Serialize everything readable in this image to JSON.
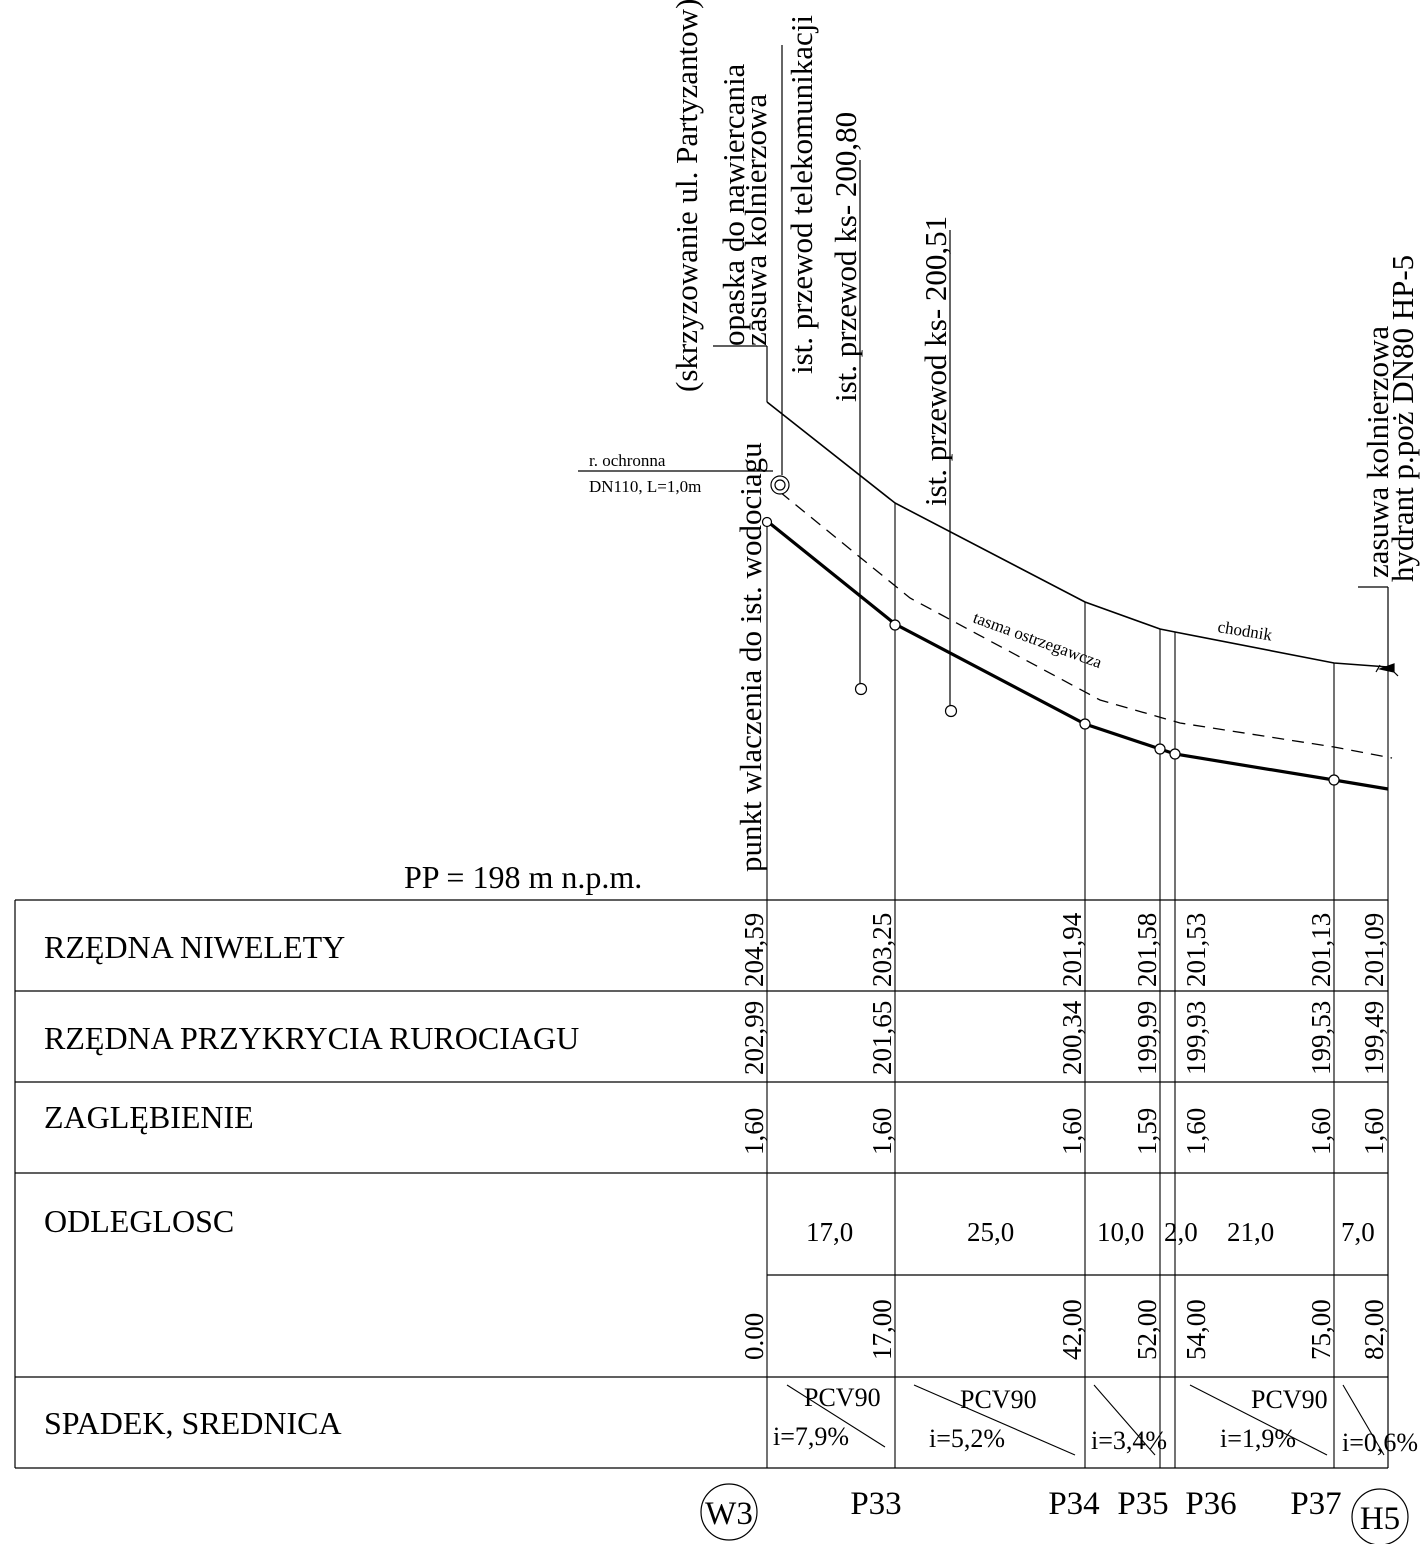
{
  "datum": "PP = 198 m n.p.m.",
  "rows": {
    "niweleta": "RZĘDNA NIWELETY",
    "przykrycie": "RZĘDNA PRZYKRYCIA RUROCIAGU",
    "zaglebienie": "ZAGLĘBIENIE",
    "odleglosc": "ODLEGLOSC",
    "spadek": "SPADEK, SREDNICA"
  },
  "annotations": {
    "skrzyzowanie": "(skrzyzowanie ul. Partyzantow)",
    "opaska": "opaska do nawiercania",
    "zasuwa_left": "zasuwa kolnierzowa",
    "telekom": "ist. przewod telekomunikacji",
    "ks1": "ist. przewod ks- 200,80",
    "ks2": "ist. przewod ks- 200,51",
    "punkt": "punkt wlaczenia do ist. wodociagu",
    "zasuwa_right": "zasuwa kolnierzowa",
    "hydrant": "hydrant p.poż DN80 HP-5",
    "ochronna1": "r. ochronna",
    "ochronna2": "DN110, L=1,0m",
    "tasma": "tasma ostrzegawcza",
    "chodnik": "chodnik"
  },
  "stations": [
    {
      "node": "W3",
      "circled": true,
      "niweleta": "204,59",
      "przykrycie": "202,99",
      "zaglebienie": "1,60",
      "distance": "0.00"
    },
    {
      "node": "P33",
      "circled": false,
      "niweleta": "203,25",
      "przykrycie": "201,65",
      "zaglebienie": "1,60",
      "distance": "17,00"
    },
    {
      "node": "P34",
      "circled": false,
      "niweleta": "201,94",
      "przykrycie": "200,34",
      "zaglebienie": "1,60",
      "distance": "42,00"
    },
    {
      "node": "P35",
      "circled": false,
      "niweleta": "201,58",
      "przykrycie": "199,99",
      "zaglebienie": "1,59",
      "distance": "52,00"
    },
    {
      "node": "P36",
      "circled": false,
      "niweleta": "201,53",
      "przykrycie": "199,93",
      "zaglebienie": "1,60",
      "distance": "54,00"
    },
    {
      "node": "P37",
      "circled": false,
      "niweleta": "201,13",
      "przykrycie": "199,53",
      "zaglebienie": "1,60",
      "distance": "75,00"
    },
    {
      "node": "H5",
      "circled": true,
      "niweleta": "201,09",
      "przykrycie": "199,49",
      "zaglebienie": "1,60",
      "distance": "82,00"
    }
  ],
  "segments": [
    "17,0",
    "25,0",
    "10,0",
    "2,0",
    "21,0",
    "7,0"
  ],
  "pipes": [
    {
      "pipe": "PCV90",
      "slope": "i=7,9%"
    },
    {
      "pipe": "PCV90",
      "slope": "i=5,2%"
    },
    {
      "pipe": "",
      "slope": "i=3,4%"
    },
    {
      "pipe": "PCV90",
      "slope": "i=1,9%"
    },
    {
      "pipe": "",
      "slope": "i=0,6%"
    }
  ]
}
